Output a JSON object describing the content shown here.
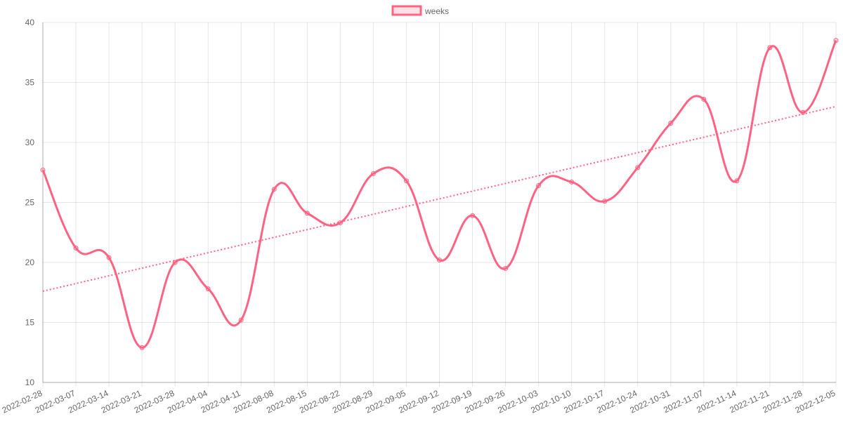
{
  "chart_data": {
    "type": "line",
    "x": [
      "2022-02-28",
      "2022-03-07",
      "2022-03-14",
      "2022-03-21",
      "2022-03-28",
      "2022-04-04",
      "2022-04-11",
      "2022-08-08",
      "2022-08-15",
      "2022-08-22",
      "2022-08-29",
      "2022-09-05",
      "2022-09-12",
      "2022-09-19",
      "2022-09-26",
      "2022-10-03",
      "2022-10-10",
      "2022-10-17",
      "2022-10-24",
      "2022-10-31",
      "2022-11-07",
      "2022-11-14",
      "2022-11-21",
      "2022-11-28",
      "2022-12-05"
    ],
    "series": [
      {
        "name": "weeks",
        "color": "#ff6384",
        "values": [
          27.7,
          21.2,
          20.4,
          12.9,
          20.0,
          17.8,
          15.2,
          26.1,
          24.1,
          23.3,
          27.4,
          26.8,
          20.2,
          23.9,
          19.5,
          26.4,
          26.7,
          25.1,
          27.9,
          31.6,
          33.6,
          26.8,
          37.9,
          32.5,
          38.5
        ]
      }
    ],
    "trendline": {
      "style": "dotted",
      "color": "#ff6384",
      "start": 17.6,
      "end": 33.0
    },
    "ylim": [
      10,
      40
    ],
    "yticks": [
      10,
      15,
      20,
      25,
      30,
      35,
      40
    ],
    "grid": true,
    "legend_position": "top-center",
    "title": "",
    "xlabel": "",
    "ylabel": ""
  }
}
